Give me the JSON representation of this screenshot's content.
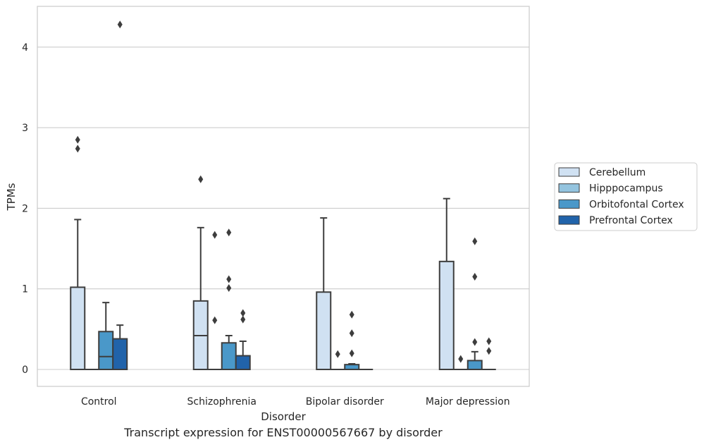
{
  "caption": "Transcript expression for ENST00000567667 by disorder",
  "chart_data": {
    "type": "boxplot",
    "xlabel": "Disorder",
    "ylabel": "TPMs",
    "ylim": [
      -0.21,
      4.5
    ],
    "yticks": [
      0,
      1,
      2,
      3,
      4
    ],
    "grid": "horizontal",
    "legend_position": "right",
    "categories": [
      "Control",
      "Schizophrenia",
      "Bipolar disorder",
      "Major depression"
    ],
    "series": [
      {
        "name": "Cerebellum",
        "color": "#d0e1f2",
        "boxes": [
          {
            "whislo": 0,
            "q1": 0,
            "med": 0,
            "q3": 1.02,
            "whishi": 1.86,
            "fliers": [
              2.74,
              2.85
            ]
          },
          {
            "whislo": 0,
            "q1": 0,
            "med": 0.42,
            "q3": 0.85,
            "whishi": 1.76,
            "fliers": [
              2.36
            ]
          },
          {
            "whislo": 0,
            "q1": 0,
            "med": 0,
            "q3": 0.96,
            "whishi": 1.88,
            "fliers": []
          },
          {
            "whislo": 0,
            "q1": 0,
            "med": 0,
            "q3": 1.34,
            "whishi": 2.12,
            "fliers": []
          }
        ]
      },
      {
        "name": "Hipppocampus",
        "color": "#94c4df",
        "boxes": [
          {
            "whislo": 0,
            "q1": 0,
            "med": 0,
            "q3": 0,
            "whishi": 0,
            "fliers": []
          },
          {
            "whislo": 0,
            "q1": 0,
            "med": 0,
            "q3": 0,
            "whishi": 0,
            "fliers": [
              0.61,
              1.67
            ]
          },
          {
            "whislo": 0,
            "q1": 0,
            "med": 0,
            "q3": 0,
            "whishi": 0,
            "fliers": [
              0.19
            ]
          },
          {
            "whislo": 0,
            "q1": 0,
            "med": 0,
            "q3": 0,
            "whishi": 0,
            "fliers": [
              0.13
            ]
          }
        ]
      },
      {
        "name": "Orbitofontal Cortex",
        "color": "#4a98c9",
        "boxes": [
          {
            "whislo": 0,
            "q1": 0,
            "med": 0.16,
            "q3": 0.47,
            "whishi": 0.83,
            "fliers": []
          },
          {
            "whislo": 0,
            "q1": 0,
            "med": 0,
            "q3": 0.33,
            "whishi": 0.42,
            "fliers": [
              1.01,
              1.12,
              1.7
            ]
          },
          {
            "whislo": 0,
            "q1": 0,
            "med": 0,
            "q3": 0.06,
            "whishi": 0.07,
            "fliers": [
              0.2,
              0.45,
              0.68
            ]
          },
          {
            "whislo": 0,
            "q1": 0,
            "med": 0,
            "q3": 0.11,
            "whishi": 0.22,
            "fliers": [
              0.34,
              1.15,
              1.59
            ]
          }
        ]
      },
      {
        "name": "Prefrontal Cortex",
        "color": "#2163aa",
        "boxes": [
          {
            "whislo": 0,
            "q1": 0,
            "med": 0,
            "q3": 0.38,
            "whishi": 0.55,
            "fliers": [
              4.28
            ]
          },
          {
            "whislo": 0,
            "q1": 0,
            "med": 0,
            "q3": 0.17,
            "whishi": 0.35,
            "fliers": [
              0.62,
              0.7
            ]
          },
          {
            "whislo": 0,
            "q1": 0,
            "med": 0,
            "q3": 0,
            "whishi": 0,
            "fliers": []
          },
          {
            "whislo": 0,
            "q1": 0,
            "med": 0,
            "q3": 0,
            "whishi": 0,
            "fliers": [
              0.23,
              0.35
            ]
          }
        ]
      }
    ]
  }
}
